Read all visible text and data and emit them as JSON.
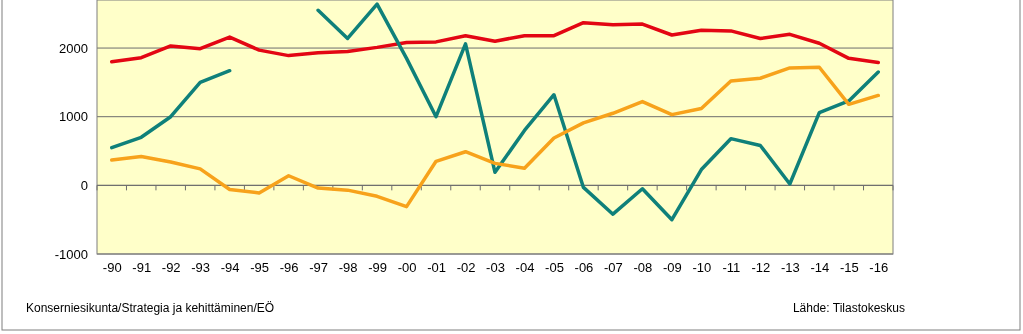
{
  "chart_data": {
    "type": "line",
    "categories": [
      "-90",
      "-91",
      "-92",
      "-93",
      "-94",
      "-95",
      "-96",
      "-97",
      "-98",
      "-99",
      "-00",
      "-01",
      "-02",
      "-03",
      "-04",
      "-05",
      "-06",
      "-07",
      "-08",
      "-09",
      "-10",
      "-11",
      "-12",
      "-13",
      "-14",
      "-15",
      "-16"
    ],
    "series": [
      {
        "color": "#e30613",
        "values": [
          1800,
          1860,
          2030,
          1990,
          2160,
          1970,
          1890,
          1930,
          1950,
          2010,
          2080,
          2090,
          2180,
          2100,
          2180,
          2180,
          2370,
          2340,
          2350,
          2190,
          2260,
          2250,
          2140,
          2200,
          2070,
          1850,
          1790
        ]
      },
      {
        "color": "#0f807a",
        "values": [
          550,
          700,
          1000,
          1500,
          1670,
          null,
          null,
          2550,
          2140,
          2640,
          1850,
          1000,
          2060,
          190,
          800,
          1320,
          -30,
          -420,
          -50,
          -500,
          230,
          680,
          580,
          20,
          1060,
          1230,
          1650
        ]
      },
      {
        "color": "#f7a21b",
        "values": [
          370,
          420,
          340,
          240,
          -60,
          -110,
          140,
          -40,
          -70,
          -160,
          -310,
          350,
          490,
          320,
          250,
          690,
          910,
          1050,
          1220,
          1030,
          1120,
          1520,
          1560,
          1710,
          1720,
          1180,
          1310
        ]
      }
    ],
    "ylim": [
      -1000,
      2700
    ],
    "yticks": [
      -1000,
      0,
      1000,
      2000
    ],
    "grid": "y",
    "annotations": [
      "Konserniesikunta/Strategia ja kehittäminen/EÖ",
      "Lähde: Tilastokeskus"
    ]
  }
}
